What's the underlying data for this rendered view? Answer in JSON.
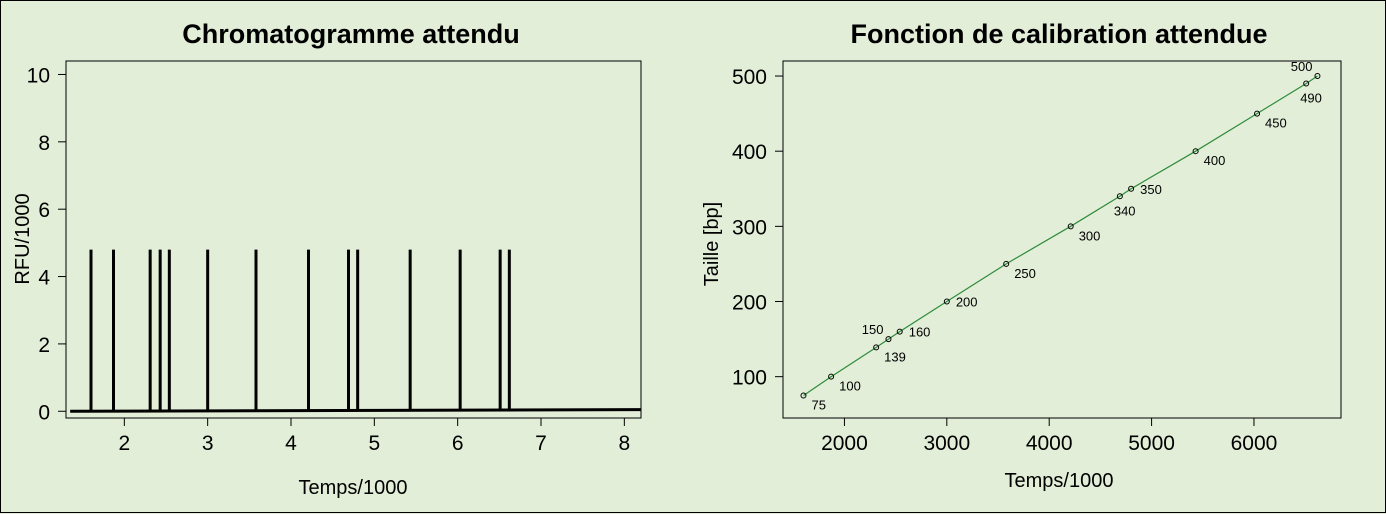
{
  "chart_data": [
    {
      "type": "line",
      "title": "Chromatogramme attendu",
      "xlabel": "Temps/1000",
      "ylabel": "RFU/1000",
      "xlim": [
        1.3,
        8.2
      ],
      "ylim": [
        -0.2,
        10.4
      ],
      "xticks": [
        "2",
        "3",
        "4",
        "5",
        "6",
        "7",
        "8"
      ],
      "yticks": [
        "0",
        "2",
        "4",
        "6",
        "8",
        "10"
      ],
      "baseline": {
        "x": [
          1.35,
          8.2
        ],
        "y": [
          0,
          0.05
        ]
      },
      "peak_height": 4.8,
      "peaks_x": [
        1.6,
        1.87,
        2.31,
        2.43,
        2.54,
        3.0,
        3.58,
        4.21,
        4.69,
        4.8,
        5.43,
        6.03,
        6.51,
        6.62
      ],
      "line_color": "#000000",
      "grid": false
    },
    {
      "type": "scatter",
      "title": "Fonction de calibration attendue",
      "xlabel": "Temps/1000",
      "ylabel": "Taille [bp]",
      "xlim": [
        1400,
        6850
      ],
      "ylim": [
        45,
        520
      ],
      "xticks": [
        "2000",
        "3000",
        "4000",
        "5000",
        "6000"
      ],
      "yticks": [
        "100",
        "200",
        "300",
        "400",
        "500"
      ],
      "line_color": "#2e8b3a",
      "grid": false,
      "points": [
        {
          "x": 1600,
          "y": 75,
          "label": "75",
          "pos": "br"
        },
        {
          "x": 1870,
          "y": 100,
          "label": "100",
          "pos": "br"
        },
        {
          "x": 2310,
          "y": 139,
          "label": "139",
          "pos": "br"
        },
        {
          "x": 2430,
          "y": 150,
          "label": "150",
          "pos": "tl"
        },
        {
          "x": 2540,
          "y": 160,
          "label": "160",
          "pos": "r"
        },
        {
          "x": 3000,
          "y": 200,
          "label": "200",
          "pos": "r"
        },
        {
          "x": 3580,
          "y": 250,
          "label": "250",
          "pos": "br"
        },
        {
          "x": 4210,
          "y": 300,
          "label": "300",
          "pos": "br"
        },
        {
          "x": 4690,
          "y": 340,
          "label": "340",
          "pos": "b"
        },
        {
          "x": 4800,
          "y": 350,
          "label": "350",
          "pos": "r"
        },
        {
          "x": 5430,
          "y": 400,
          "label": "400",
          "pos": "br"
        },
        {
          "x": 6030,
          "y": 450,
          "label": "450",
          "pos": "br"
        },
        {
          "x": 6510,
          "y": 490,
          "label": "490",
          "pos": "b"
        },
        {
          "x": 6620,
          "y": 500,
          "label": "500",
          "pos": "tl"
        }
      ]
    }
  ]
}
